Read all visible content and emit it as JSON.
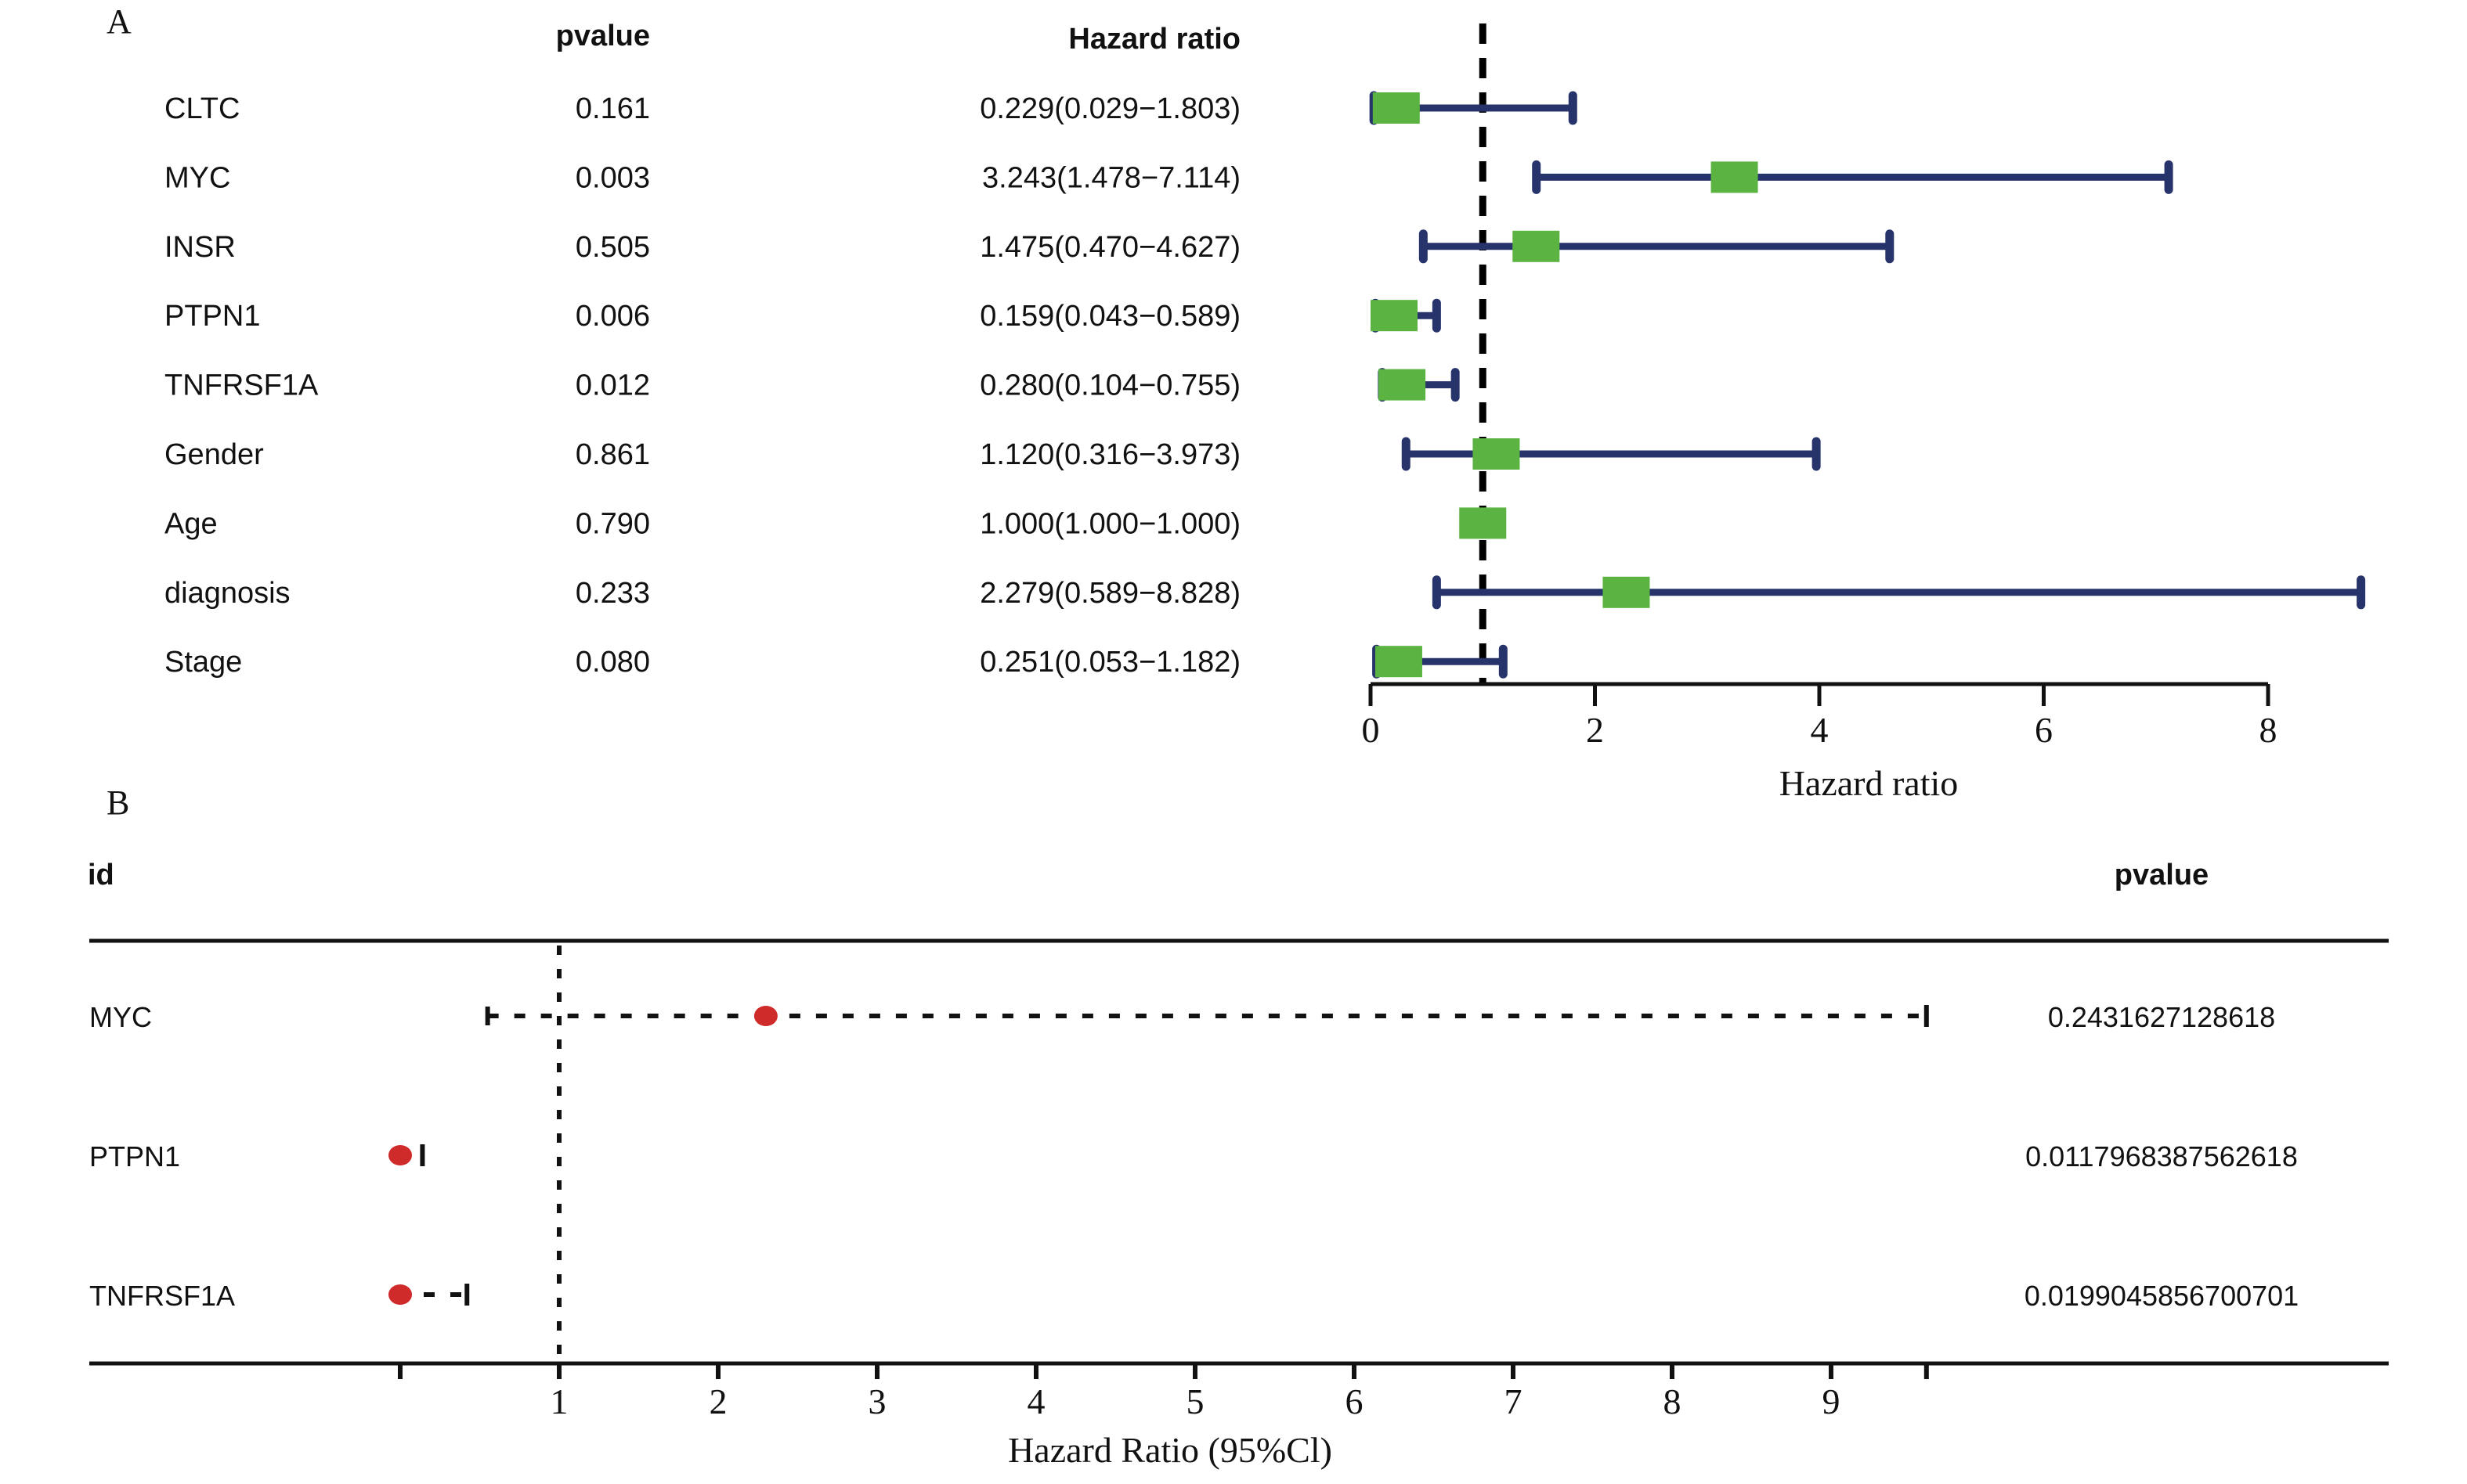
{
  "chart_data": [
    {
      "panel_label": "A",
      "type": "forest",
      "headers": {
        "pvalue": "pvalue",
        "hr": "Hazard ratio"
      },
      "rows": [
        {
          "id": "CLTC",
          "pvalue": "0.161",
          "hr_text": "0.229(0.029−1.803)",
          "hr": 0.229,
          "lower": 0.029,
          "upper": 1.803
        },
        {
          "id": "MYC",
          "pvalue": "0.003",
          "hr_text": "3.243(1.478−7.114)",
          "hr": 3.243,
          "lower": 1.478,
          "upper": 7.114
        },
        {
          "id": "INSR",
          "pvalue": "0.505",
          "hr_text": "1.475(0.470−4.627)",
          "hr": 1.475,
          "lower": 0.47,
          "upper": 4.627
        },
        {
          "id": "PTPN1",
          "pvalue": "0.006",
          "hr_text": "0.159(0.043−0.589)",
          "hr": 0.159,
          "lower": 0.043,
          "upper": 0.589
        },
        {
          "id": "TNFRSF1A",
          "pvalue": "0.012",
          "hr_text": "0.280(0.104−0.755)",
          "hr": 0.28,
          "lower": 0.104,
          "upper": 0.755
        },
        {
          "id": "Gender",
          "pvalue": "0.861",
          "hr_text": "1.120(0.316−3.973)",
          "hr": 1.12,
          "lower": 0.316,
          "upper": 3.973
        },
        {
          "id": "Age",
          "pvalue": "0.790",
          "hr_text": "1.000(1.000−1.000)",
          "hr": 1.0,
          "lower": 1.0,
          "upper": 1.0
        },
        {
          "id": "diagnosis",
          "pvalue": "0.233",
          "hr_text": "2.279(0.589−8.828)",
          "hr": 2.279,
          "lower": 0.589,
          "upper": 8.828
        },
        {
          "id": "Stage",
          "pvalue": "0.080",
          "hr_text": "0.251(0.053−1.182)",
          "hr": 0.251,
          "lower": 0.053,
          "upper": 1.182
        }
      ],
      "xlabel": "Hazard ratio",
      "xlim": [
        0,
        8
      ],
      "xticks": [
        "0",
        "2",
        "4",
        "6",
        "8"
      ],
      "reference_line": 1,
      "colors": {
        "box": "#5BB441",
        "ci": "#27336B",
        "ref": "#000000"
      }
    },
    {
      "panel_label": "B",
      "type": "forest",
      "headers": {
        "id": "id",
        "pvalue": "pvalue"
      },
      "rows": [
        {
          "id": "MYC",
          "pvalue": "0.2431627128618",
          "hr": 2.3,
          "lower": 0.55,
          "upper": 9.6
        },
        {
          "id": "PTPN1",
          "pvalue": "0.0117968387562618",
          "hr": 0.0,
          "lower": 0.0,
          "upper": 0.14
        },
        {
          "id": "TNFRSF1A",
          "pvalue": "0.0199045856700701",
          "hr": 0.0,
          "lower": 0.0,
          "upper": 0.42
        }
      ],
      "xlabel": "Hazard Ratio (95%Cl)",
      "xticks": [
        "",
        "1",
        "2",
        "3",
        "4",
        "5",
        "6",
        "7",
        "8",
        "9",
        ""
      ],
      "xtick_values": [
        0,
        1,
        2,
        3,
        4,
        5,
        6,
        7,
        8,
        9,
        9.6
      ],
      "reference_line": 1,
      "colors": {
        "point": "#D02B2B",
        "ci": "#111111"
      }
    }
  ]
}
